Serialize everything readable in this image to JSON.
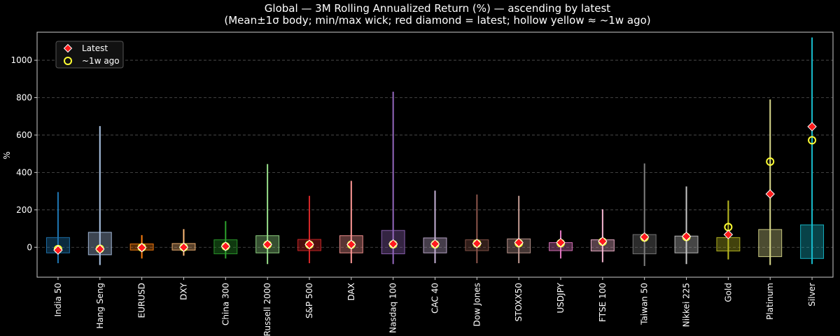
{
  "chart_data": {
    "type": "box-range",
    "title": "Global — 3M Rolling Annualized Return (%) — ascending by latest",
    "subtitle": "(Mean±1σ body; min/max wick; red diamond = latest; hollow yellow ≈ ~1w ago)",
    "xlabel": "",
    "ylabel": "%",
    "ylim": [
      -160,
      1150
    ],
    "yticks": [
      0,
      200,
      400,
      600,
      800,
      1000
    ],
    "grid": "y-dashed",
    "legend": {
      "placement": "top-left",
      "entries": [
        {
          "label": "Latest",
          "marker": "red-diamond"
        },
        {
          "label": "~1w ago",
          "marker": "hollow-yellow-circle"
        }
      ]
    },
    "series": [
      {
        "name": "India 50",
        "color": "#1f77b4",
        "min": -85,
        "max": 295,
        "mean_minus_sd": -30,
        "mean_plus_sd": 52,
        "latest": -15,
        "week_ago": -10
      },
      {
        "name": "Hang Seng",
        "color": "#aec7e8",
        "min": -95,
        "max": 648,
        "mean_minus_sd": -40,
        "mean_plus_sd": 80,
        "latest": -10,
        "week_ago": -8
      },
      {
        "name": "EURUSD",
        "color": "#ff7f0e",
        "min": -60,
        "max": 65,
        "mean_minus_sd": -15,
        "mean_plus_sd": 18,
        "latest": -2,
        "week_ago": -1
      },
      {
        "name": "DXY",
        "color": "#ffbb78",
        "min": -45,
        "max": 97,
        "mean_minus_sd": -15,
        "mean_plus_sd": 20,
        "latest": 0,
        "week_ago": 0
      },
      {
        "name": "China 300",
        "color": "#2ca02c",
        "min": -60,
        "max": 140,
        "mean_minus_sd": -35,
        "mean_plus_sd": 40,
        "latest": 5,
        "week_ago": 5
      },
      {
        "name": "Russell 2000",
        "color": "#98df8a",
        "min": -90,
        "max": 445,
        "mean_minus_sd": -30,
        "mean_plus_sd": 62,
        "latest": 15,
        "week_ago": 14
      },
      {
        "name": "S&P 500",
        "color": "#d62728",
        "min": -85,
        "max": 275,
        "mean_minus_sd": -18,
        "mean_plus_sd": 42,
        "latest": 15,
        "week_ago": 14
      },
      {
        "name": "DAX",
        "color": "#ff9896",
        "min": -85,
        "max": 355,
        "mean_minus_sd": -30,
        "mean_plus_sd": 62,
        "latest": 15,
        "week_ago": 14
      },
      {
        "name": "Nasdaq 100",
        "color": "#9467bd",
        "min": -90,
        "max": 832,
        "mean_minus_sd": -35,
        "mean_plus_sd": 90,
        "latest": 18,
        "week_ago": 16
      },
      {
        "name": "CAC 40",
        "color": "#c5b0d5",
        "min": -85,
        "max": 303,
        "mean_minus_sd": -30,
        "mean_plus_sd": 50,
        "latest": 18,
        "week_ago": 16
      },
      {
        "name": "Dow Jones",
        "color": "#8c564b",
        "min": -85,
        "max": 282,
        "mean_minus_sd": -18,
        "mean_plus_sd": 40,
        "latest": 20,
        "week_ago": 20
      },
      {
        "name": "STOXX50",
        "color": "#c49c94",
        "min": -85,
        "max": 275,
        "mean_minus_sd": -30,
        "mean_plus_sd": 45,
        "latest": 25,
        "week_ago": 22
      },
      {
        "name": "USDJPY",
        "color": "#e377c2",
        "min": -60,
        "max": 90,
        "mean_minus_sd": -18,
        "mean_plus_sd": 25,
        "latest": 25,
        "week_ago": 22
      },
      {
        "name": "FTSE 100",
        "color": "#f7b6d2",
        "min": -80,
        "max": 203,
        "mean_minus_sd": -20,
        "mean_plus_sd": 40,
        "latest": 32,
        "week_ago": 30
      },
      {
        "name": "Taiwan 50",
        "color": "#7f7f7f",
        "min": -100,
        "max": 448,
        "mean_minus_sd": -35,
        "mean_plus_sd": 68,
        "latest": 55,
        "week_ago": 52
      },
      {
        "name": "Nikkei 225",
        "color": "#c7c7c7",
        "min": -90,
        "max": 325,
        "mean_minus_sd": -30,
        "mean_plus_sd": 60,
        "latest": 58,
        "week_ago": 55
      },
      {
        "name": "Gold",
        "color": "#bcbd22",
        "min": -65,
        "max": 250,
        "mean_minus_sd": -20,
        "mean_plus_sd": 52,
        "latest": 68,
        "week_ago": 108
      },
      {
        "name": "Platinum",
        "color": "#dbdb8d",
        "min": -95,
        "max": 790,
        "mean_minus_sd": -50,
        "mean_plus_sd": 95,
        "latest": 285,
        "week_ago": 458
      },
      {
        "name": "Silver",
        "color": "#17becf",
        "min": -90,
        "max": 1122,
        "mean_minus_sd": -60,
        "mean_plus_sd": 120,
        "latest": 645,
        "week_ago": 572
      }
    ]
  }
}
